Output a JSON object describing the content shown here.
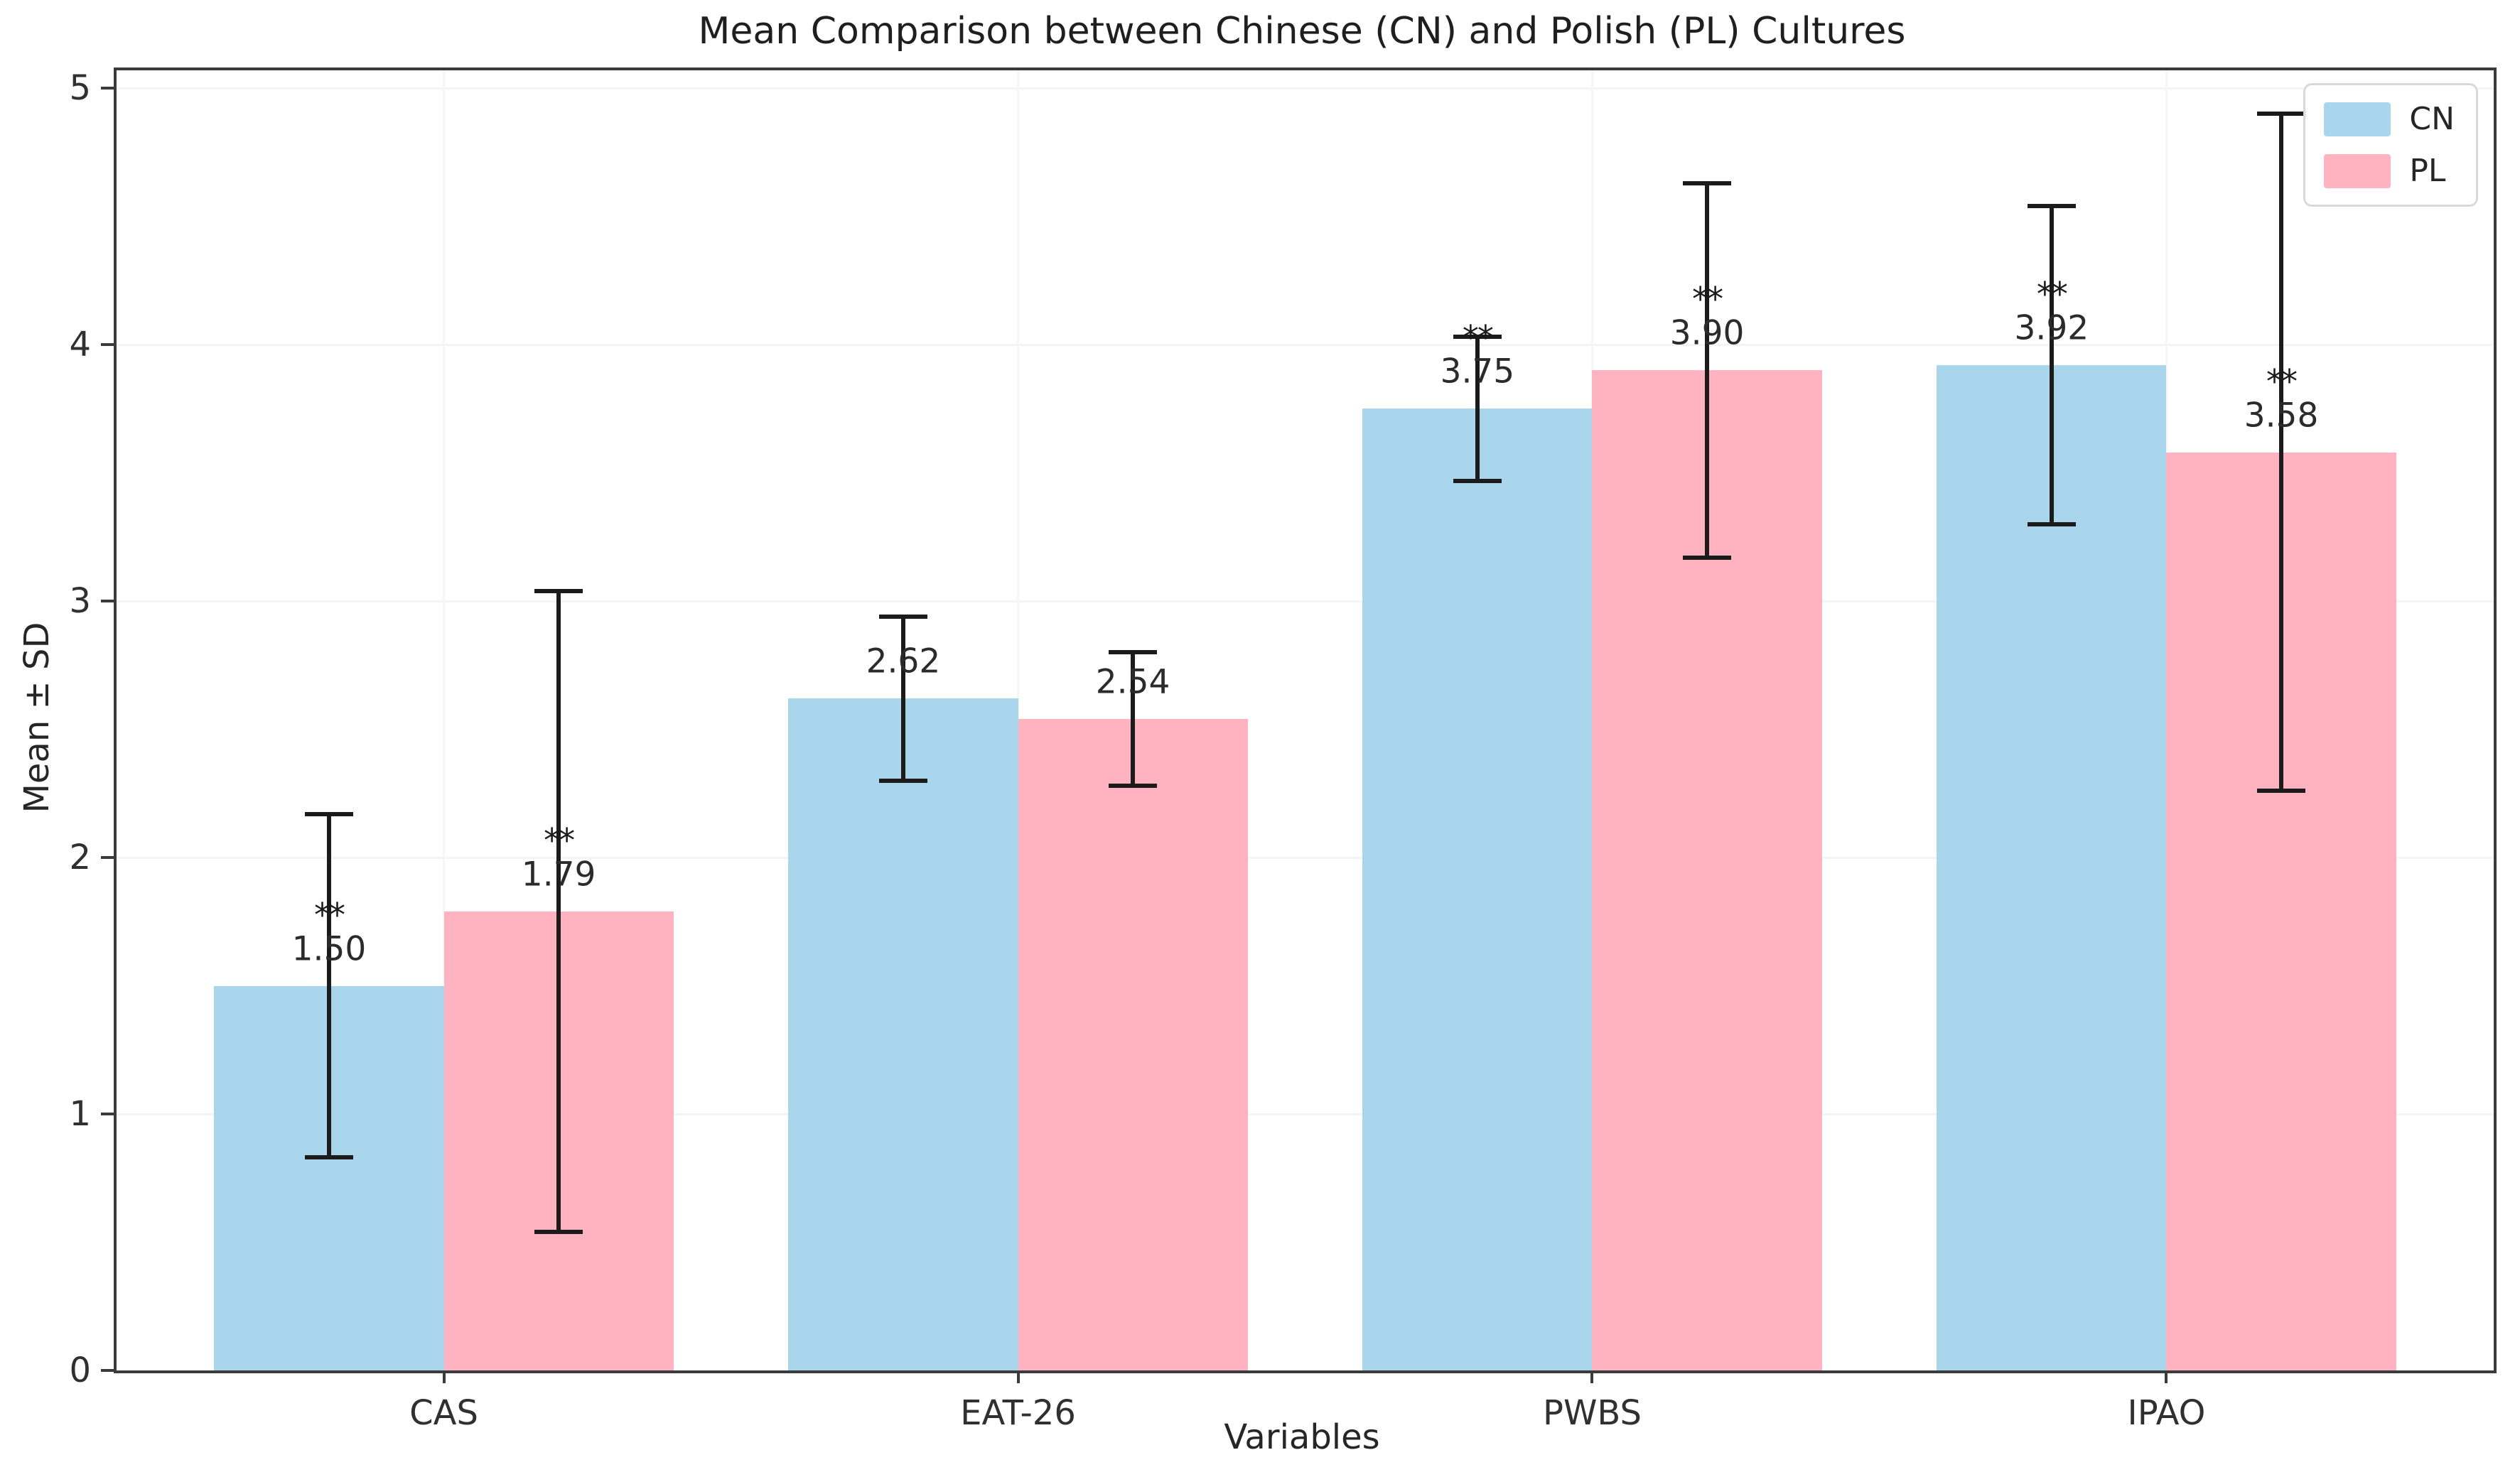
{
  "title": "Mean Comparison between Chinese (CN) and Polish (PL) Cultures",
  "axes": {
    "x_label": "Variables",
    "y_label": "Mean ± SD",
    "y_ticks": [
      "0",
      "1",
      "2",
      "3",
      "4",
      "5"
    ],
    "y_max": 5.07
  },
  "legend": {
    "items": [
      {
        "label": "CN",
        "color": "#a9d6ec"
      },
      {
        "label": "PL",
        "color": "#ffb3c0"
      }
    ]
  },
  "chart_data": {
    "type": "bar",
    "title": "Mean Comparison between Chinese (CN) and Polish (PL) Cultures",
    "xlabel": "Variables",
    "ylabel": "Mean ± SD",
    "ylim": [
      0,
      5.07
    ],
    "grid": "faint horizontal and vertical lines",
    "legend_position": "upper right",
    "categories": [
      "CAS",
      "EAT-26",
      "PWBS",
      "IPAO"
    ],
    "series": [
      {
        "name": "CN",
        "color": "#a9d6ec",
        "values": [
          1.5,
          2.62,
          3.75,
          3.92
        ],
        "sd": [
          0.67,
          0.32,
          0.28,
          0.62
        ],
        "value_labels": [
          "1.50",
          "2.62",
          "3.75",
          "3.92"
        ],
        "significance": [
          "**",
          "",
          "**",
          "**"
        ]
      },
      {
        "name": "PL",
        "color": "#ffb3c0",
        "values": [
          1.79,
          2.54,
          3.9,
          3.58
        ],
        "sd": [
          1.25,
          0.26,
          0.73,
          1.32
        ],
        "value_labels": [
          "1.79",
          "2.54",
          "3.90",
          "3.58"
        ],
        "significance": [
          "**",
          "",
          "**",
          "**"
        ]
      }
    ],
    "error_bar_color": "#1b1b1b",
    "annotation_note": "value labels centered on error bars; ** above significant bars"
  }
}
